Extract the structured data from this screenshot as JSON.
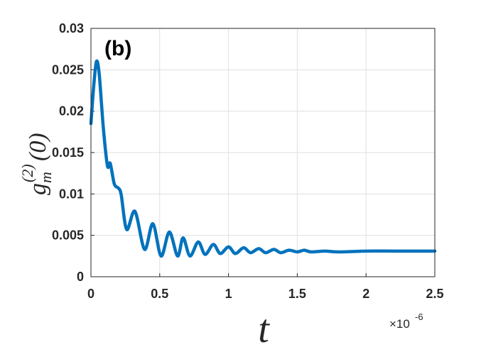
{
  "chart_data": {
    "type": "line",
    "annotation": "(b)",
    "x_label": "t",
    "y_label": {
      "base": "g",
      "subscript": "m",
      "superscript": "(2)",
      "argument": "(0)"
    },
    "x_multiplier": {
      "base": "×10",
      "exponent": "-6"
    },
    "x": [
      0,
      0.02,
      0.04,
      0.06,
      0.09,
      0.12,
      0.14,
      0.17,
      0.2,
      0.22,
      0.26,
      0.32,
      0.39,
      0.45,
      0.51,
      0.57,
      0.63,
      0.67,
      0.72,
      0.78,
      0.83,
      0.89,
      0.94,
      1.0,
      1.05,
      1.11,
      1.16,
      1.22,
      1.27,
      1.33,
      1.38,
      1.44,
      1.5,
      1.55,
      1.6,
      1.7,
      1.8,
      2.0,
      2.2,
      2.5
    ],
    "series": [
      {
        "name": "g",
        "color": "#0072bd",
        "values": [
          0.0185,
          0.023,
          0.026,
          0.0245,
          0.018,
          0.0134,
          0.0137,
          0.0112,
          0.0107,
          0.0099,
          0.0057,
          0.0079,
          0.0033,
          0.0064,
          0.0025,
          0.0054,
          0.0025,
          0.0047,
          0.0025,
          0.0042,
          0.0027,
          0.0039,
          0.0028,
          0.0036,
          0.0028,
          0.0035,
          0.0029,
          0.0034,
          0.0029,
          0.0033,
          0.0029,
          0.0032,
          0.003,
          0.0032,
          0.003,
          0.0031,
          0.003,
          0.0031,
          0.0031,
          0.0031
        ]
      }
    ],
    "xlim": [
      0,
      2.5
    ],
    "xticks": [
      0,
      0.5,
      1,
      1.5,
      2,
      2.5
    ],
    "ylim": [
      0,
      0.03
    ],
    "yticks": [
      0,
      0.005,
      0.01,
      0.015,
      0.02,
      0.025,
      0.03
    ],
    "grid": true
  }
}
